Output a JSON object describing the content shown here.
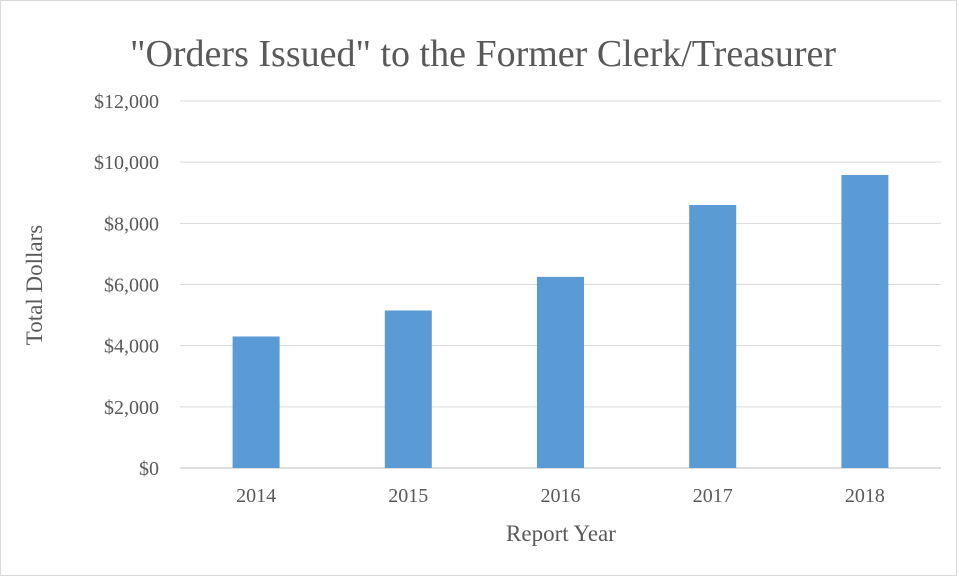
{
  "chart_data": {
    "type": "bar",
    "title": "\"Orders Issued\" to the Former Clerk/Treasurer",
    "xlabel": "Report Year",
    "ylabel": "Total Dollars",
    "categories": [
      "2014",
      "2015",
      "2016",
      "2017",
      "2018"
    ],
    "values": [
      4300,
      5150,
      6250,
      8600,
      9580
    ],
    "ylim": [
      0,
      12000
    ],
    "yticks": [
      0,
      2000,
      4000,
      6000,
      8000,
      10000,
      12000
    ],
    "ytick_labels": [
      "$0",
      "$2,000",
      "$4,000",
      "$6,000",
      "$8,000",
      "$10,000",
      "$12,000"
    ],
    "grid": true,
    "legend": "none",
    "bar_color": "#5b9bd5",
    "grid_color": "#d9d9d9",
    "text_color": "#595959"
  }
}
